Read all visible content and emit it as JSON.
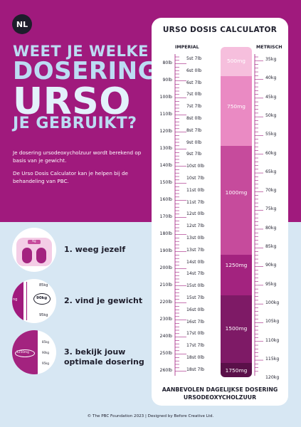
{
  "badge": "NL",
  "headline": {
    "l1": "WEET JE WELKE",
    "l2": "DOSERING",
    "l3": "URSO",
    "l4": "JE GEBRUIKT?"
  },
  "intro": {
    "p1": "Je dosering ursodeoxycholzuur wordt berekend op basis van je gewicht.",
    "p2": "De Urso Dosis Calculator kan je helpen bij de behandeling van PBC."
  },
  "steps": [
    {
      "label": "1. weeg jezelf",
      "icon": "scale-icon",
      "scale_text": "Kg"
    },
    {
      "label": "2. vind je gewicht",
      "icon": "ruler-icon",
      "ruler": {
        "top": "85kg",
        "mid": "90kg",
        "bottom": "95kg",
        "edge": "ng"
      }
    },
    {
      "label": "3. bekijk jouw optimale dosering",
      "icon": "dose-chart-icon",
      "mini": {
        "dose": "1250mg",
        "kgs": [
          "85kg",
          "90kg",
          "95kg"
        ]
      }
    }
  ],
  "calculator": {
    "title": "URSO DOSIS CALCULATOR",
    "imperial": "IMPERIAL",
    "metric": "METRISCH",
    "lbs": [
      "80lb",
      "90lb",
      "100lb",
      "110lb",
      "120lb",
      "130lb",
      "140lb",
      "150lb",
      "160lb",
      "170lb",
      "180lb",
      "190lb",
      "200lb",
      "210lb",
      "220lb",
      "230lb",
      "240lb",
      "250lb",
      "260lb"
    ],
    "stones": [
      "5st 7lb",
      "6st 0lb",
      "6st 7lb",
      "7st 0lb",
      "7st 7lb",
      "8st 0lb",
      "8st 7lb",
      "9st 0lb",
      "9st 7lb",
      "10st 0lb",
      "10st 7lb",
      "11st 0lb",
      "11st 7lb",
      "12st 0lb",
      "12st 7lb",
      "13st 0lb",
      "13st 7lb",
      "14st 0lb",
      "14st 7lb",
      "15st 0lb",
      "15st 7lb",
      "16st 0lb",
      "16st 7lb",
      "17st 0lb",
      "17st 7lb",
      "18st 0lb",
      "18st 7lb"
    ],
    "kgs": [
      "35kg",
      "40kg",
      "45kg",
      "50kg",
      "55kg",
      "60kg",
      "65kg",
      "70kg",
      "75kg",
      "80kg",
      "85kg",
      "90kg",
      "95kg",
      "100kg",
      "105kg",
      "110kg",
      "115kg",
      "120kg"
    ],
    "doses": [
      {
        "label": "500mg",
        "color": "#f6bfdd"
      },
      {
        "label": "750mg",
        "color": "#ea8ac3"
      },
      {
        "label": "1000mg",
        "color": "#c64b9c"
      },
      {
        "label": "1250mg",
        "color": "#a3237f"
      },
      {
        "label": "1500mg",
        "color": "#7e1a66"
      },
      {
        "label": "1750mg",
        "color": "#5a1049"
      }
    ],
    "recommend_l1": "AANBEVOLEN DAGELIJKSE DOSERING",
    "recommend_l2": "URSODEOXYCHOLZUUR"
  },
  "footer": "© The PBC Foundation 2023  |  Designed by Before Creative Ltd.",
  "colors": {
    "magenta": "#a01a7d",
    "light_blue": "#d7e7f3",
    "dark": "#1d1d2b",
    "heading": "#bcdcf3"
  }
}
